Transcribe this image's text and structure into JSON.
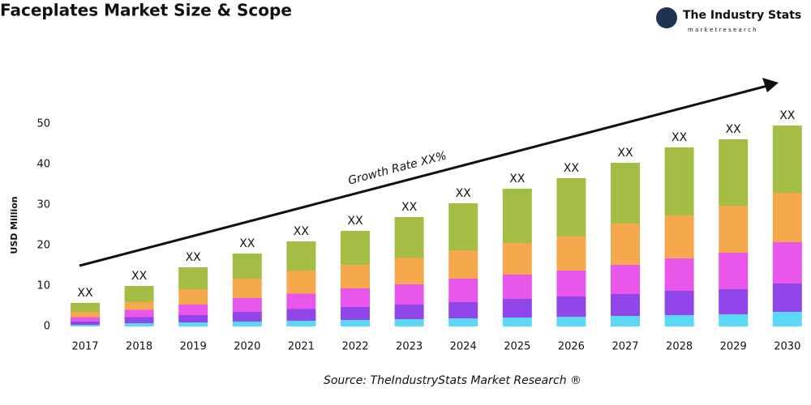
{
  "header": {
    "title": "Faceplates Market Size & Scope",
    "logo_name": "The Industry Stats",
    "logo_tagline": "m a r k e t   r e s e a r c h"
  },
  "chart_data": {
    "type": "stacked_bar",
    "y_label": "USD Million",
    "annotation": "Growth Rate XX%",
    "source": "Source: TheIndustryStats Market Research ®",
    "categories": [
      "2017",
      "2018",
      "2019",
      "2020",
      "2021",
      "2022",
      "2023",
      "2024",
      "2025",
      "2026",
      "2027",
      "2028",
      "2029",
      "2030"
    ],
    "total_labels": [
      "XX",
      "XX",
      "XX",
      "XX",
      "XX",
      "XX",
      "XX",
      "XX",
      "XX",
      "XX",
      "XX",
      "XX",
      "XX",
      "XX"
    ],
    "series": [
      {
        "color": "#5bd8f5",
        "values": [
          0.4,
          0.8,
          1.0,
          1.2,
          1.4,
          1.6,
          1.8,
          2.0,
          2.2,
          2.4,
          2.6,
          2.8,
          3.0,
          3.6
        ]
      },
      {
        "color": "#9146ea",
        "values": [
          0.8,
          1.5,
          1.8,
          2.4,
          2.9,
          3.2,
          3.6,
          4.0,
          4.6,
          5.0,
          5.4,
          6.0,
          6.2,
          7.0
        ]
      },
      {
        "color": "#e957ea",
        "values": [
          1.1,
          1.8,
          2.6,
          3.4,
          3.8,
          4.6,
          5.0,
          5.8,
          6.0,
          6.4,
          7.2,
          8.0,
          9.0,
          10.2
        ]
      },
      {
        "color": "#f5a94c",
        "values": [
          1.3,
          2.0,
          3.8,
          4.8,
          5.7,
          5.8,
          6.6,
          7.0,
          7.8,
          8.4,
          10.2,
          10.6,
          11.6,
          12.2
        ]
      },
      {
        "color": "#a3bd45",
        "values": [
          2.2,
          3.9,
          5.4,
          6.2,
          7.2,
          8.4,
          10.0,
          11.6,
          13.4,
          14.4,
          15.0,
          16.8,
          16.4,
          16.6
        ]
      }
    ],
    "ylim": [
      0,
      55
    ],
    "yticks": [
      0,
      10,
      20,
      30,
      40,
      50
    ]
  }
}
